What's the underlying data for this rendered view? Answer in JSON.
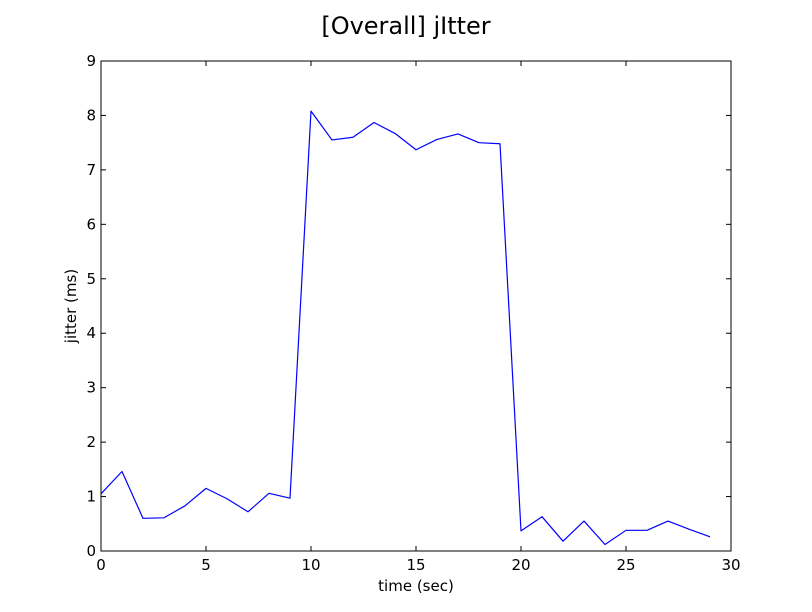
{
  "chart_data": {
    "type": "line",
    "title": "[Overall]  jItter",
    "xlabel": "time (sec)",
    "ylabel": "jitter (ms)",
    "xlim": [
      0,
      30
    ],
    "ylim": [
      0,
      9
    ],
    "xticks": [
      0,
      5,
      10,
      15,
      20,
      25,
      30
    ],
    "yticks": [
      0,
      1,
      2,
      3,
      4,
      5,
      6,
      7,
      8,
      9
    ],
    "grid": false,
    "series": [
      {
        "color": "#0000ff",
        "x": [
          0,
          1,
          2,
          3,
          4,
          5,
          6,
          7,
          8,
          9,
          10,
          11,
          12,
          13,
          14,
          15,
          16,
          17,
          18,
          19,
          20,
          21,
          22,
          23,
          24,
          25,
          26,
          27,
          28,
          29
        ],
        "y": [
          1.05,
          1.46,
          0.6,
          0.61,
          0.83,
          1.15,
          0.96,
          0.72,
          1.06,
          0.97,
          8.08,
          7.55,
          7.6,
          7.87,
          7.67,
          7.37,
          7.56,
          7.66,
          7.5,
          7.48,
          0.37,
          0.63,
          0.18,
          0.55,
          0.12,
          0.38,
          0.38,
          0.55,
          0.4,
          0.26
        ]
      }
    ]
  }
}
